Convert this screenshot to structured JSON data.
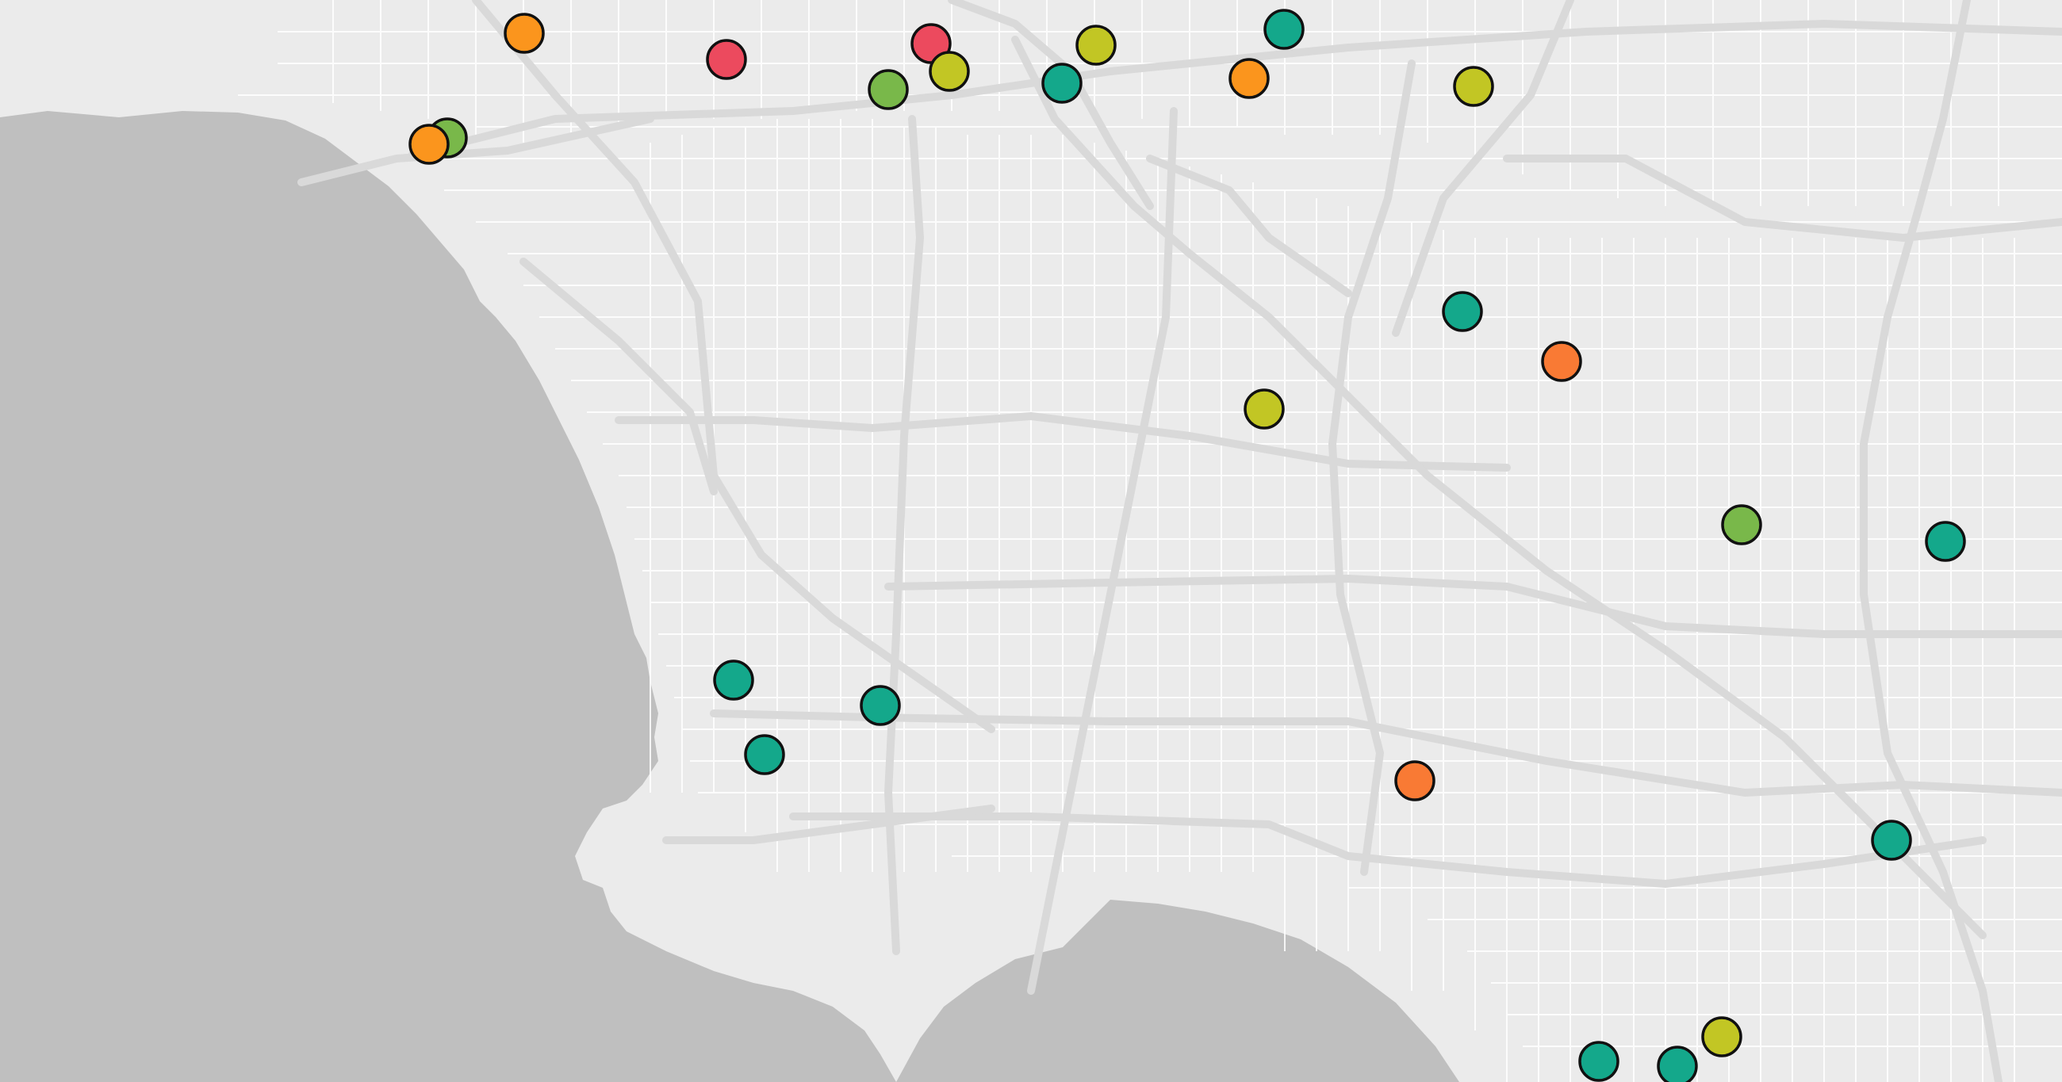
{
  "map": {
    "style": "light-gray-basemap",
    "colors": {
      "land": "#ebebeb",
      "water": "#bfbfbf",
      "road_major": "#d9d9d9",
      "road_minor": "#ffffff",
      "marker_outline": "#111111"
    },
    "legend_category_colors": {
      "teal": "#14a88b",
      "yellow_green": "#c2c624",
      "green": "#79b84a",
      "orange": "#fb951d",
      "orange_red": "#f97a34",
      "red": "#ec4a5e"
    },
    "markers": [
      {
        "category": "orange",
        "color": "#fb951d"
      },
      {
        "category": "red",
        "color": "#ec4a5e"
      },
      {
        "category": "red",
        "color": "#ec4a5e"
      },
      {
        "category": "yellow_green",
        "color": "#c2c624"
      },
      {
        "category": "green",
        "color": "#79b84a"
      },
      {
        "category": "teal",
        "color": "#14a88b"
      },
      {
        "category": "yellow_green",
        "color": "#c2c624"
      },
      {
        "category": "teal",
        "color": "#14a88b"
      },
      {
        "category": "orange",
        "color": "#fb951d"
      },
      {
        "category": "yellow_green",
        "color": "#c2c624"
      },
      {
        "category": "green",
        "color": "#79b84a"
      },
      {
        "category": "orange",
        "color": "#fb951d"
      },
      {
        "category": "teal",
        "color": "#14a88b"
      },
      {
        "category": "orange_red",
        "color": "#f97a34"
      },
      {
        "category": "yellow_green",
        "color": "#c2c624"
      },
      {
        "category": "green",
        "color": "#79b84a"
      },
      {
        "category": "teal",
        "color": "#14a88b"
      },
      {
        "category": "teal",
        "color": "#14a88b"
      },
      {
        "category": "teal",
        "color": "#14a88b"
      },
      {
        "category": "teal",
        "color": "#14a88b"
      },
      {
        "category": "orange_red",
        "color": "#f97a34"
      },
      {
        "category": "teal",
        "color": "#14a88b"
      },
      {
        "category": "yellow_green",
        "color": "#c2c624"
      },
      {
        "category": "teal",
        "color": "#14a88b"
      },
      {
        "category": "teal",
        "color": "#14a88b"
      }
    ]
  }
}
